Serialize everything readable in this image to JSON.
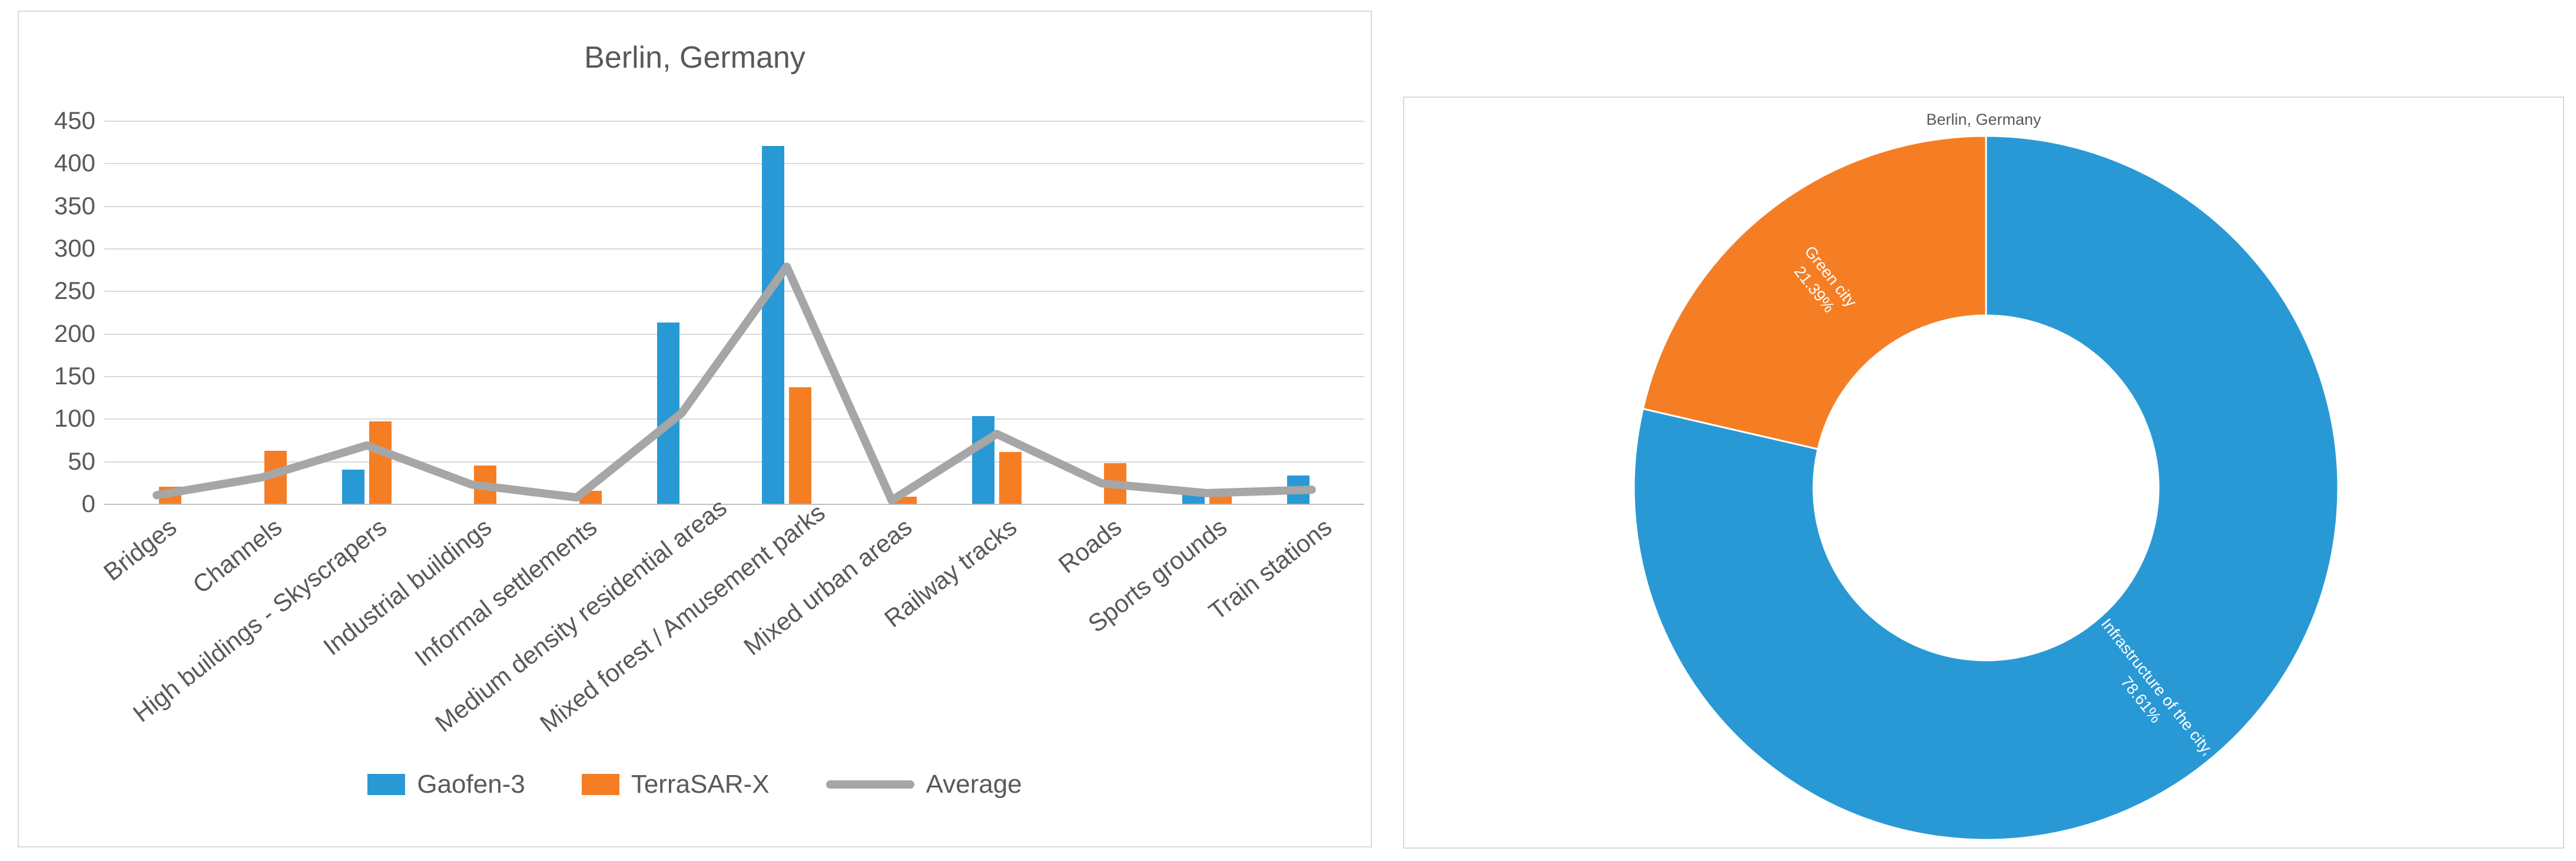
{
  "page": {
    "background": "#ffffff",
    "panel_border": "#d9d9d9"
  },
  "colors": {
    "gaofen3_blue": "#2999d5",
    "terrasar_orange": "#f57e25",
    "average_gray": "#a6a6a6",
    "text_gray": "#595959",
    "gridline": "#d9d9d9",
    "axis_line": "#bfbfbf"
  },
  "chart_data": [
    {
      "type": "bar",
      "title": "Berlin, Germany",
      "categories": [
        "Bridges",
        "Channels",
        "High buildings - Skyscrapers",
        "Industrial buildings",
        "Informal settlements",
        "Medium density residential areas",
        "Mixed forest / Amusement parks",
        "Mixed urban areas",
        "Railway tracks",
        "Roads",
        "Sports grounds",
        "Train stations"
      ],
      "series": [
        {
          "name": "Gaofen-3",
          "type": "bar",
          "color": "#2999d5",
          "values": [
            0,
            0,
            40,
            0,
            0,
            213,
            420,
            0,
            103,
            0,
            12,
            33
          ]
        },
        {
          "name": "TerraSAR-X",
          "type": "bar",
          "color": "#f57e25",
          "values": [
            20,
            62,
            97,
            45,
            15,
            0,
            137,
            8,
            61,
            48,
            13,
            0
          ]
        },
        {
          "name": "Average",
          "type": "line",
          "color": "#a6a6a6",
          "values": [
            10,
            31,
            68.5,
            22.5,
            7.5,
            106.5,
            278.5,
            4,
            82,
            24,
            12.5,
            16.5
          ]
        }
      ],
      "xlabel": "",
      "ylabel": "",
      "ylim": [
        0,
        450
      ],
      "ytick_step": 50,
      "grid": true,
      "legend_position": "bottom"
    },
    {
      "type": "pie",
      "donut": true,
      "title": "Berlin, Germany",
      "start_angle_deg": 0,
      "direction": "clockwise",
      "slices": [
        {
          "name": "Infrastructure of the city",
          "value_percent": 78.61,
          "label_lines": [
            "Infrastructure of the city,",
            "78.61%"
          ],
          "color": "#2999d5"
        },
        {
          "name": "Green city",
          "value_percent": 21.39,
          "label_lines": [
            "Green city",
            "21.39%"
          ],
          "color": "#f57e25"
        }
      ]
    }
  ]
}
